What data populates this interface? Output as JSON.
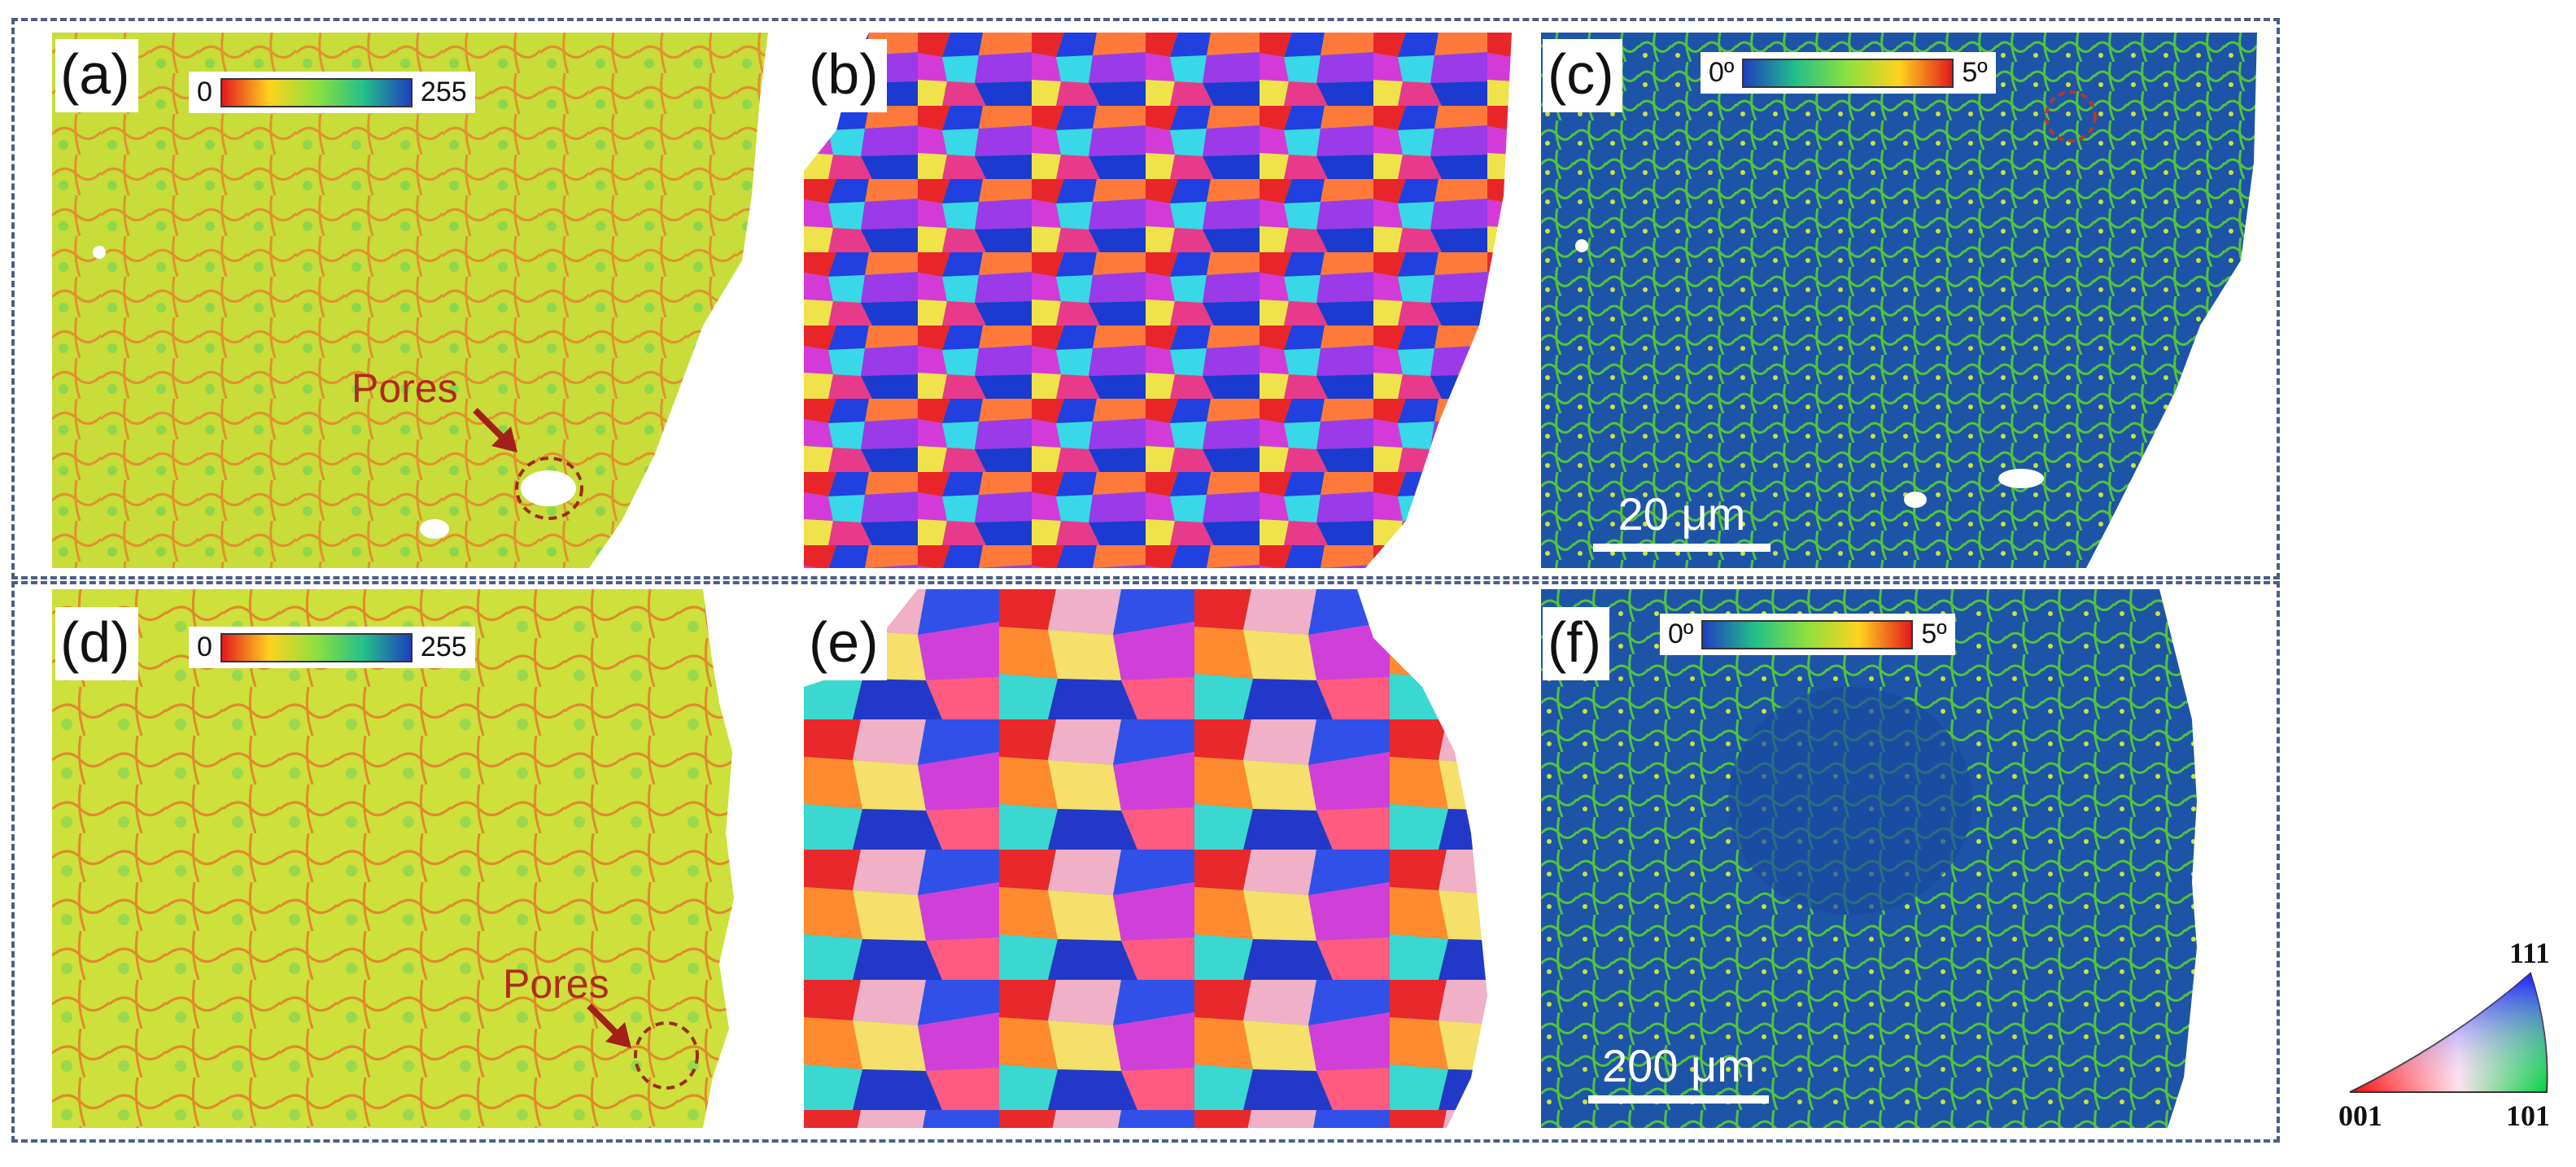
{
  "panels": [
    {
      "label": "(a)"
    },
    {
      "label": "(b)"
    },
    {
      "label": "(c)"
    },
    {
      "label": "(d)"
    },
    {
      "label": "(e)"
    },
    {
      "label": "(f)"
    }
  ],
  "colorbars": {
    "kam_top": {
      "min": "0",
      "max": "255"
    },
    "kam_bottom": {
      "min": "0",
      "max": "255"
    },
    "gnd_top": {
      "min": "0º",
      "max": "5º"
    },
    "gnd_bottom": {
      "min": "0º",
      "max": "5º"
    }
  },
  "annotations": {
    "pores_top": "Pores",
    "pores_bottom": "Pores"
  },
  "scale_bars": {
    "top": "20 μm",
    "bottom": "200 μm"
  },
  "ipf_legend": {
    "corner_001": "001",
    "corner_101": "101",
    "corner_111": "111"
  },
  "colors": {
    "frame": "#4a5f86",
    "kam_background": "#c6dc37",
    "kam_boundary": "#e08a2a",
    "gnd_background": "#1d54a8",
    "gnd_boundary": "#52c43a",
    "pores_text": "#b12a1a"
  }
}
